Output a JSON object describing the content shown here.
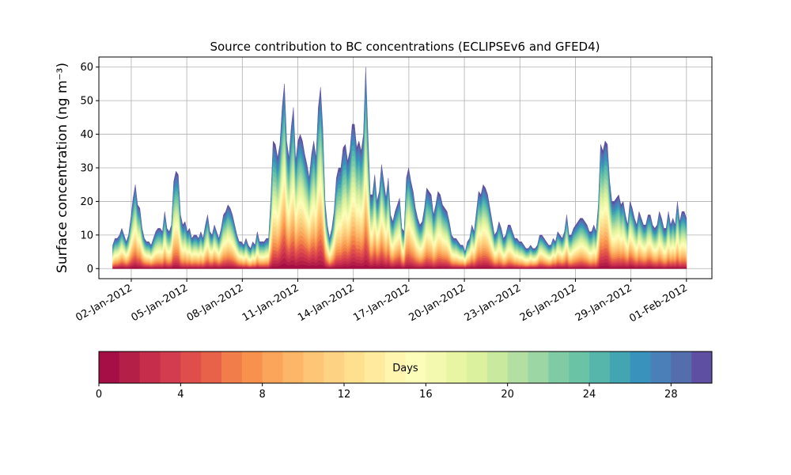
{
  "chart_data": {
    "type": "area",
    "title": "Source contribution to BC concentrations (ECLIPSEv6 and GFED4)",
    "ylabel": "Surface concentration (ng m⁻³)",
    "xlabel": "",
    "ylim": [
      -3,
      63
    ],
    "y_ticks": [
      0,
      10,
      20,
      30,
      40,
      50,
      60
    ],
    "xlim": [
      "2011-12-31T06:00",
      "2012-02-02T09:00"
    ],
    "x_ticks": [
      "02-Jan-2012",
      "05-Jan-2012",
      "08-Jan-2012",
      "11-Jan-2012",
      "14-Jan-2012",
      "17-Jan-2012",
      "20-Jan-2012",
      "23-Jan-2012",
      "26-Jan-2012",
      "29-Jan-2012",
      "01-Feb-2012"
    ],
    "grid": true,
    "total_series": {
      "name": "",
      "x_start": "2012-01-01",
      "x_end": "2012-02-01",
      "y": [
        7,
        9,
        9,
        10,
        12,
        10,
        8,
        10,
        15,
        21,
        25,
        19,
        18,
        12,
        9,
        8,
        8,
        7,
        9,
        11,
        12,
        12,
        11,
        17,
        12,
        11,
        13,
        26,
        29,
        28,
        16,
        13,
        14,
        11,
        12,
        9,
        10,
        10,
        9,
        11,
        9,
        13,
        16,
        11,
        10,
        13,
        11,
        9,
        12,
        16,
        17,
        19,
        18,
        16,
        13,
        10,
        8,
        8,
        7,
        9,
        7,
        6,
        8,
        7,
        11,
        8,
        8,
        8,
        9,
        9,
        21,
        38,
        37,
        33,
        37,
        48,
        55,
        38,
        33,
        42,
        48,
        32,
        38,
        40,
        38,
        34,
        31,
        27,
        34,
        38,
        33,
        48,
        54,
        42,
        20,
        13,
        9,
        12,
        17,
        27,
        30,
        30,
        36,
        37,
        32,
        35,
        43,
        43,
        36,
        38,
        35,
        40,
        60,
        40,
        22,
        22,
        28,
        20,
        23,
        31,
        26,
        21,
        27,
        16,
        14,
        17,
        19,
        21,
        12,
        11,
        27,
        30,
        26,
        23,
        18,
        15,
        13,
        14,
        18,
        24,
        23,
        22,
        16,
        19,
        23,
        22,
        19,
        18,
        17,
        14,
        10,
        9,
        9,
        8,
        7,
        7,
        5,
        8,
        9,
        13,
        11,
        17,
        23,
        22,
        25,
        24,
        22,
        18,
        14,
        10,
        11,
        14,
        12,
        9,
        10,
        13,
        13,
        11,
        9,
        9,
        8,
        8,
        7,
        6,
        6,
        7,
        6,
        6,
        7,
        10,
        10,
        9,
        8,
        7,
        7,
        9,
        8,
        11,
        10,
        9,
        11,
        16,
        10,
        10,
        12,
        13,
        14,
        15,
        15,
        14,
        13,
        11,
        11,
        13,
        11,
        19,
        37,
        35,
        38,
        37,
        26,
        20,
        20,
        21,
        22,
        19,
        20,
        16,
        13,
        20,
        18,
        15,
        13,
        17,
        15,
        13,
        13,
        16,
        16,
        13,
        12,
        13,
        17,
        15,
        12,
        12,
        17,
        13,
        15,
        13,
        20,
        14,
        17,
        17,
        15
      ]
    },
    "colorbar": {
      "label": "Days",
      "range": [
        0,
        30
      ],
      "ticks": [
        0,
        4,
        8,
        12,
        16,
        20,
        24,
        28
      ],
      "colors": [
        "#a50f46",
        "#b41f48",
        "#c52d4b",
        "#d33c4e",
        "#df4e4b",
        "#e86149",
        "#f17d4a",
        "#f7914d",
        "#fba55b",
        "#fdb567",
        "#fdc676",
        "#fed283",
        "#fee08f",
        "#feeb9d",
        "#fff5ae",
        "#fbfdb9",
        "#f3faaf",
        "#e8f6a3",
        "#dbf19e",
        "#c9e99e",
        "#b3e0a2",
        "#9bd6a4",
        "#80cba4",
        "#6bc3a6",
        "#57b6ab",
        "#43a4b2",
        "#3992bb",
        "#4980b8",
        "#546ead",
        "#5e4fa2"
      ]
    }
  }
}
